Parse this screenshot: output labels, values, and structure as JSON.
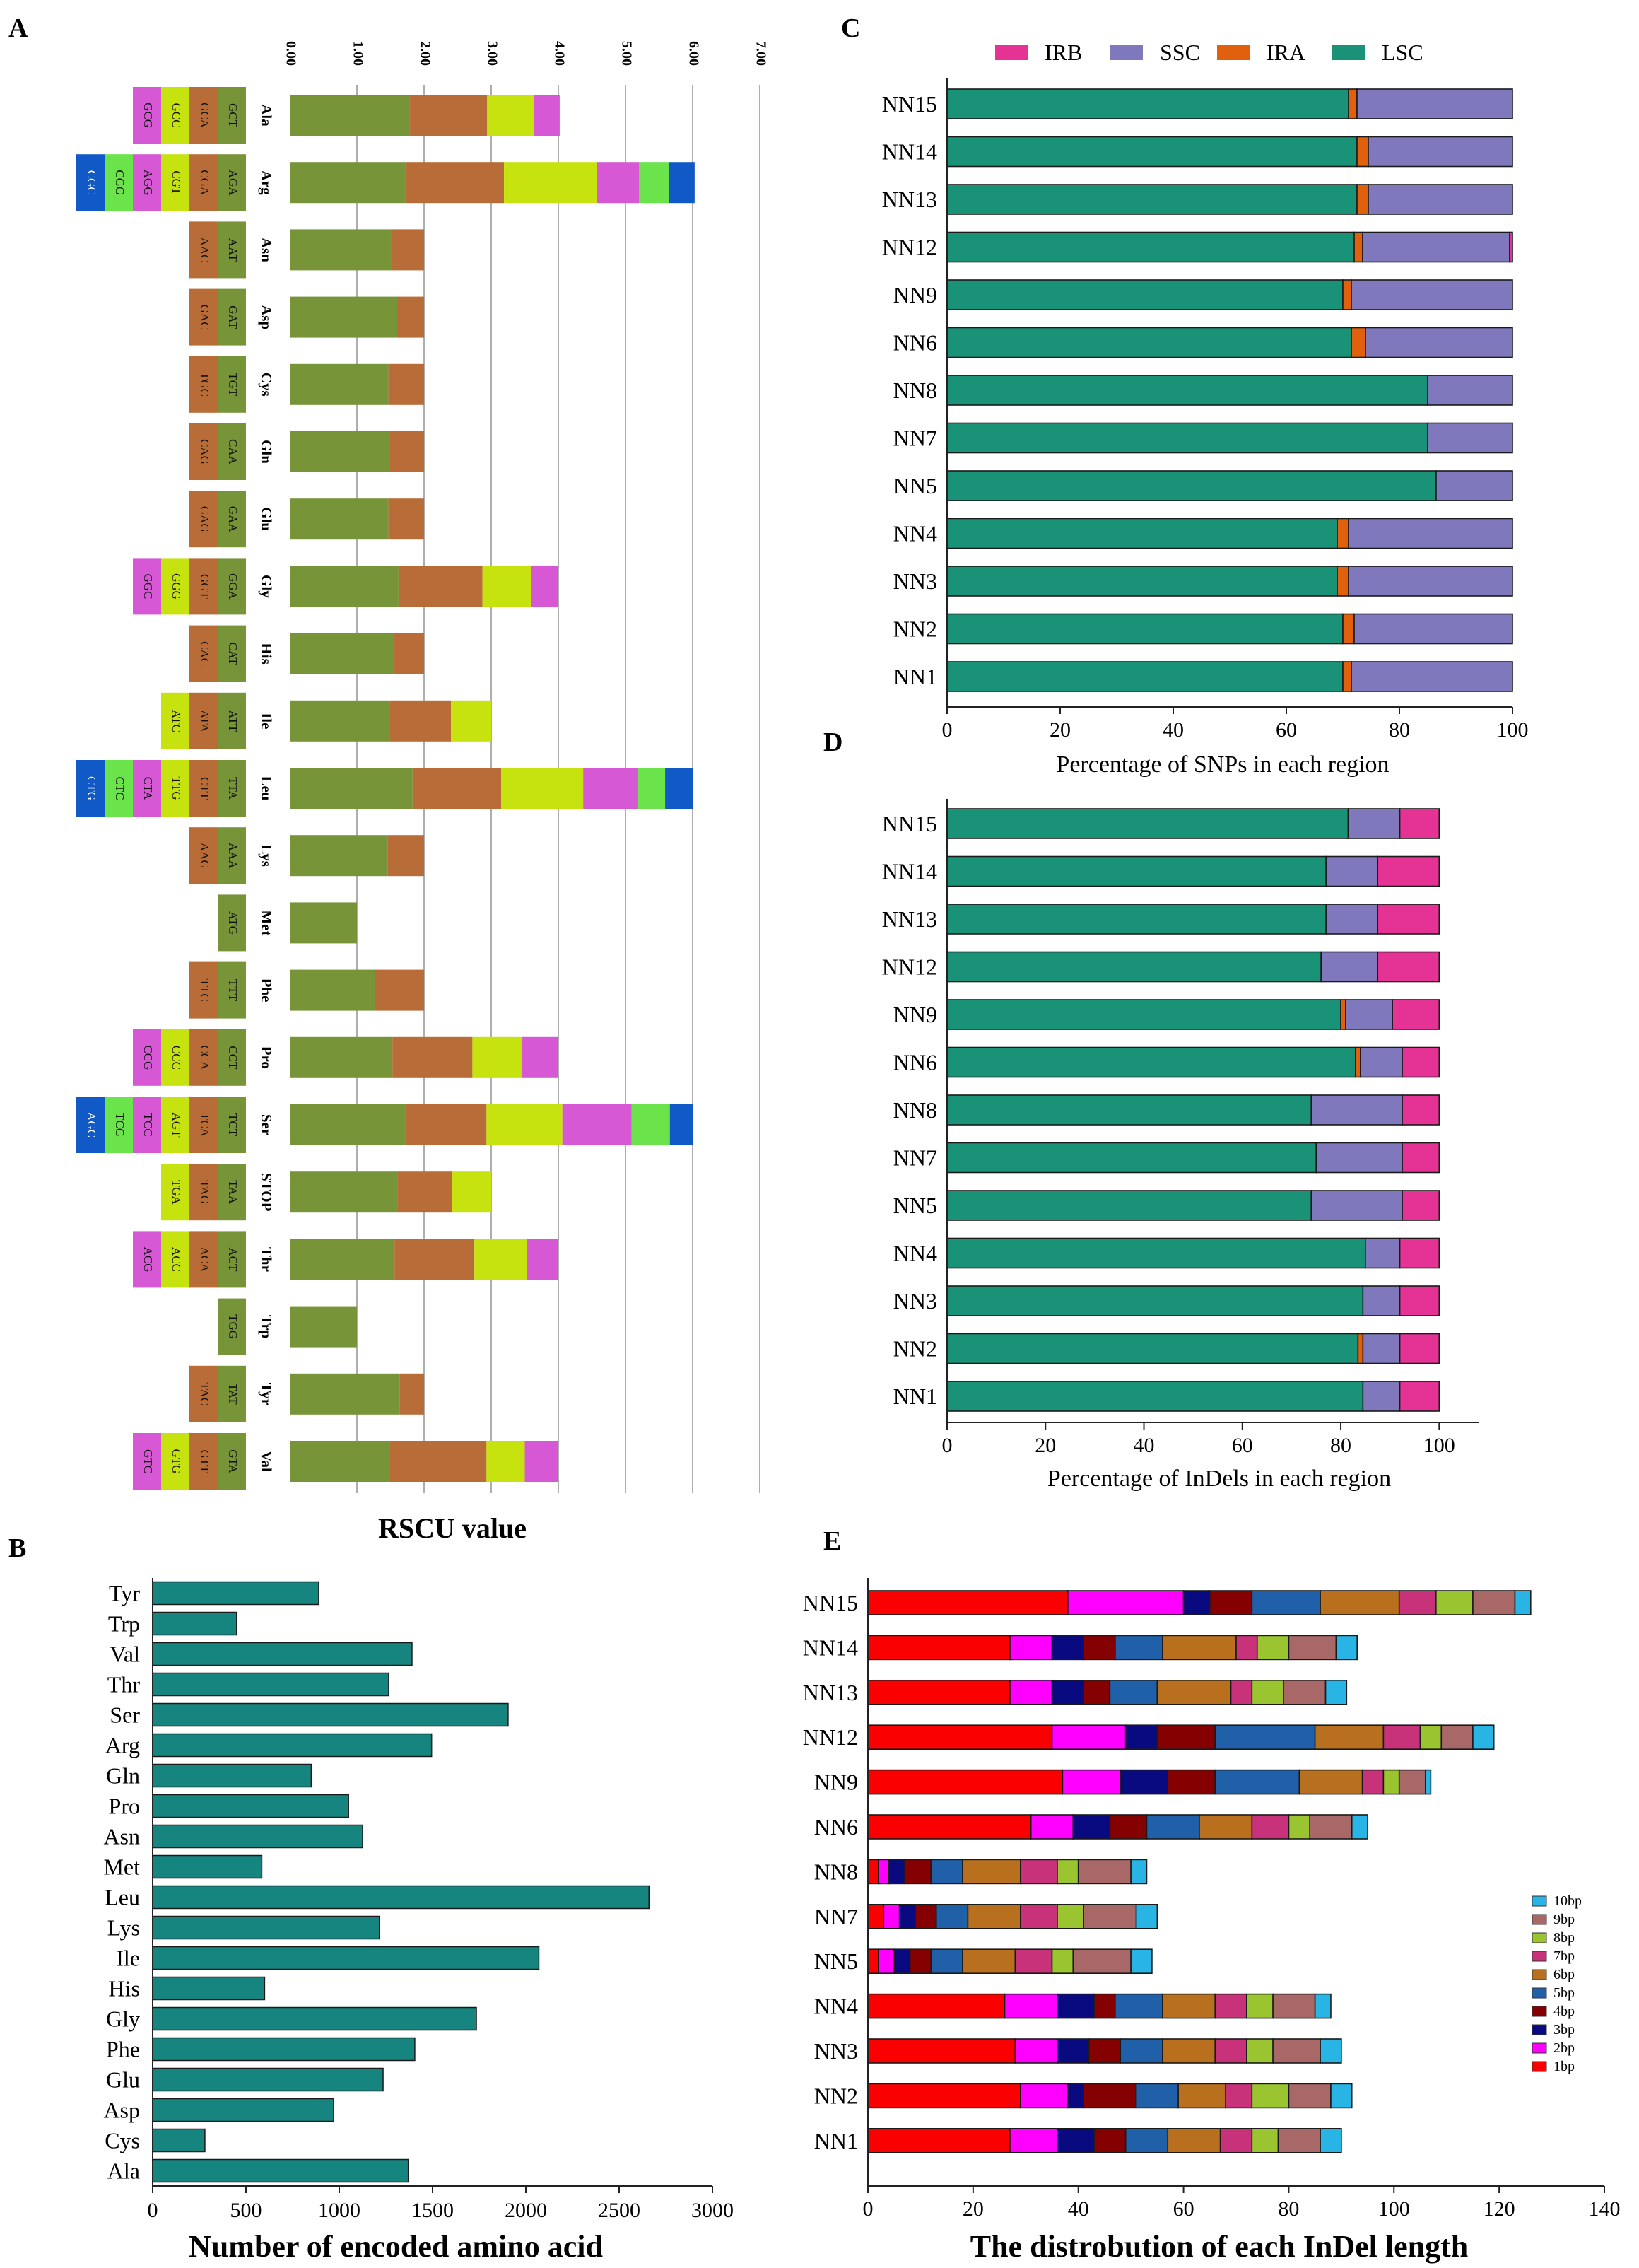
{
  "panels": {
    "A": "A",
    "B": "B",
    "C": "C",
    "D": "D",
    "E": "E"
  },
  "colors": {
    "teal": "#16857f",
    "olive": "#779438",
    "brown": "#b86c37",
    "lime": "#c6e30f",
    "magenta": "#d658d5",
    "green": "#6be34a",
    "blue": "#1259c8",
    "lsc": "#1a9278",
    "ira": "#e0600d",
    "ssc": "#7f78bc",
    "irb": "#e43394"
  },
  "chart_data": [
    {
      "panel": "A",
      "type": "bar",
      "subtype": "stacked-horizontal-rscu",
      "xlabel": "RSCU value",
      "ticks": [
        "0.00",
        "1.00",
        "2.00",
        "3.00",
        "4.00",
        "5.00",
        "6.00",
        "7.00"
      ],
      "xlim": [
        0,
        7
      ],
      "rows": [
        {
          "aa": "Ala",
          "codons": [
            "GCT",
            "GCA",
            "GCC",
            "GCG"
          ],
          "values": [
            1.79,
            1.15,
            0.7,
            0.38
          ]
        },
        {
          "aa": "Arg",
          "codons": [
            "AGA",
            "CGA",
            "CGT",
            "AGG",
            "CGG",
            "CGC"
          ],
          "values": [
            1.72,
            1.47,
            1.38,
            0.63,
            0.45,
            0.38
          ]
        },
        {
          "aa": "Asn",
          "codons": [
            "AAT",
            "AAC"
          ],
          "values": [
            1.51,
            0.49
          ]
        },
        {
          "aa": "Asp",
          "codons": [
            "GAT",
            "GAC"
          ],
          "values": [
            1.6,
            0.4
          ]
        },
        {
          "aa": "Cys",
          "codons": [
            "TGT",
            "TGC"
          ],
          "values": [
            1.47,
            0.53
          ]
        },
        {
          "aa": "Gln",
          "codons": [
            "CAA",
            "CAG"
          ],
          "values": [
            1.49,
            0.51
          ]
        },
        {
          "aa": "Glu",
          "codons": [
            "GAA",
            "GAG"
          ],
          "values": [
            1.47,
            0.53
          ]
        },
        {
          "aa": "Gly",
          "codons": [
            "GGA",
            "GGT",
            "GGG",
            "GGC"
          ],
          "values": [
            1.62,
            1.25,
            0.72,
            0.41
          ]
        },
        {
          "aa": "His",
          "codons": [
            "CAT",
            "CAC"
          ],
          "values": [
            1.55,
            0.45
          ]
        },
        {
          "aa": "Ile",
          "codons": [
            "ATT",
            "ATA",
            "ATC"
          ],
          "values": [
            1.49,
            0.91,
            0.6
          ]
        },
        {
          "aa": "Leu",
          "codons": [
            "TTA",
            "CTT",
            "TTG",
            "CTA",
            "CTC",
            "CTG"
          ],
          "values": [
            1.83,
            1.32,
            1.22,
            0.82,
            0.4,
            0.41
          ]
        },
        {
          "aa": "Lys",
          "codons": [
            "AAA",
            "AAG"
          ],
          "values": [
            1.46,
            0.54
          ]
        },
        {
          "aa": "Met",
          "codons": [
            "ATG"
          ],
          "values": [
            1.0
          ]
        },
        {
          "aa": "Phe",
          "codons": [
            "TTT",
            "TTC"
          ],
          "values": [
            1.27,
            0.73
          ]
        },
        {
          "aa": "Pro",
          "codons": [
            "CCT",
            "CCA",
            "CCC",
            "CCG"
          ],
          "values": [
            1.53,
            1.19,
            0.74,
            0.54
          ]
        },
        {
          "aa": "Ser",
          "codons": [
            "TCT",
            "TCA",
            "AGT",
            "TCC",
            "TCG",
            "AGC"
          ],
          "values": [
            1.72,
            1.21,
            1.13,
            1.03,
            0.57,
            0.34
          ]
        },
        {
          "aa": "STOP",
          "codons": [
            "TAA",
            "TAG",
            "TGA"
          ],
          "values": [
            1.61,
            0.81,
            0.58
          ]
        },
        {
          "aa": "Thr",
          "codons": [
            "ACT",
            "ACA",
            "ACC",
            "ACG"
          ],
          "values": [
            1.56,
            1.19,
            0.78,
            0.47
          ]
        },
        {
          "aa": "Trp",
          "codons": [
            "TGG"
          ],
          "values": [
            1.0
          ]
        },
        {
          "aa": "Tyr",
          "codons": [
            "TAT",
            "TAC"
          ],
          "values": [
            1.64,
            0.36
          ]
        },
        {
          "aa": "Val",
          "codons": [
            "GTA",
            "GTT",
            "GTG",
            "GTC"
          ],
          "values": [
            1.49,
            1.44,
            0.57,
            0.5
          ]
        }
      ]
    },
    {
      "panel": "B",
      "type": "bar",
      "subtype": "horizontal",
      "xlabel": "Number of encoded amino acid",
      "ticks": [
        "0",
        "500",
        "1000",
        "1500",
        "2000",
        "2500",
        "3000"
      ],
      "xlim": [
        0,
        3000
      ],
      "categories": [
        "Tyr",
        "Trp",
        "Val",
        "Thr",
        "Ser",
        "Arg",
        "Gln",
        "Pro",
        "Asn",
        "Met",
        "Leu",
        "Lys",
        "Ile",
        "His",
        "Gly",
        "Phe",
        "Glu",
        "Asp",
        "Cys",
        "Ala"
      ],
      "values": [
        890,
        450,
        1390,
        1265,
        1905,
        1495,
        850,
        1050,
        1125,
        585,
        2660,
        1215,
        2070,
        600,
        1735,
        1405,
        1235,
        970,
        280,
        1370
      ]
    },
    {
      "panel": "C",
      "type": "bar",
      "subtype": "stacked-horizontal-percent",
      "xlabel": "Percentage of SNPs in each region",
      "ticks": [
        "0",
        "20",
        "40",
        "60",
        "80",
        "100"
      ],
      "xlim": [
        0,
        100
      ],
      "legend": [
        "IRB",
        "SSC",
        "IRA",
        "LSC"
      ],
      "categories": [
        "NN15",
        "NN14",
        "NN13",
        "NN12",
        "NN9",
        "NN6",
        "NN8",
        "NN7",
        "NN5",
        "NN4",
        "NN3",
        "NN2",
        "NN1"
      ],
      "series": [
        {
          "name": "LSC",
          "values": [
            71.0,
            72.5,
            72.5,
            72.0,
            70.0,
            71.5,
            85.0,
            85.0,
            86.5,
            69.0,
            69.0,
            70.0,
            70.0
          ]
        },
        {
          "name": "IRA",
          "values": [
            1.5,
            2.0,
            2.0,
            1.5,
            1.5,
            2.5,
            0,
            0,
            0,
            2.0,
            2.0,
            2.0,
            1.5
          ]
        },
        {
          "name": "SSC",
          "values": [
            27.5,
            25.5,
            25.5,
            26.0,
            28.5,
            26.0,
            15.0,
            15.0,
            13.5,
            29.0,
            29.0,
            28.0,
            28.5
          ]
        },
        {
          "name": "IRB",
          "values": [
            0,
            0,
            0,
            0.5,
            0,
            0,
            0,
            0,
            0,
            0,
            0,
            0,
            0
          ]
        }
      ]
    },
    {
      "panel": "D",
      "type": "bar",
      "subtype": "stacked-horizontal-percent",
      "xlabel": "Percentage of InDels in each region",
      "ticks": [
        "0",
        "20",
        "40",
        "60",
        "80",
        "100"
      ],
      "xlim": [
        0,
        108
      ],
      "categories": [
        "NN15",
        "NN14",
        "NN13",
        "NN12",
        "NN9",
        "NN6",
        "NN8",
        "NN7",
        "NN5",
        "NN4",
        "NN3",
        "NN2",
        "NN1"
      ],
      "series": [
        {
          "name": "LSC",
          "values": [
            81.5,
            77.0,
            77.0,
            76.0,
            80.0,
            83.0,
            74.0,
            75.0,
            74.0,
            85.0,
            84.5,
            83.5,
            84.5
          ]
        },
        {
          "name": "IRA",
          "values": [
            0,
            0,
            0,
            0,
            1.0,
            1.0,
            0,
            0,
            0,
            0,
            0,
            1.0,
            0
          ]
        },
        {
          "name": "SSC",
          "values": [
            10.5,
            10.5,
            10.5,
            11.5,
            9.5,
            8.5,
            18.5,
            17.5,
            18.5,
            7.0,
            7.5,
            7.5,
            7.5
          ]
        },
        {
          "name": "IRB",
          "values": [
            8.0,
            12.5,
            12.5,
            12.5,
            9.5,
            7.5,
            7.5,
            7.5,
            7.5,
            8.0,
            8.0,
            8.0,
            8.0
          ]
        }
      ]
    },
    {
      "panel": "E",
      "type": "bar",
      "subtype": "stacked-horizontal",
      "xlabel": "The distrobution of each InDel length",
      "ticks": [
        "0",
        "20",
        "40",
        "60",
        "80",
        "100",
        "120",
        "140"
      ],
      "xlim": [
        0,
        140
      ],
      "legend": [
        "10bp",
        "9bp",
        "8bp",
        "7bp",
        "6bp",
        "5bp",
        "4bp",
        "3bp",
        "2bp",
        "1bp"
      ],
      "categories": [
        "NN15",
        "NN14",
        "NN13",
        "NN12",
        "NN9",
        "NN6",
        "NN8",
        "NN7",
        "NN5",
        "NN4",
        "NN3",
        "NN2",
        "NN1"
      ],
      "series": [
        {
          "name": "1bp",
          "values": [
            38,
            27,
            27,
            35,
            37,
            31,
            2,
            3,
            2,
            26,
            28,
            29,
            27
          ]
        },
        {
          "name": "2bp",
          "values": [
            22,
            8,
            8,
            14,
            11,
            8,
            2,
            3,
            3,
            10,
            8,
            9,
            9
          ]
        },
        {
          "name": "3bp",
          "values": [
            5,
            6,
            6,
            6,
            9,
            7,
            3,
            3,
            3,
            7,
            6,
            3,
            7
          ]
        },
        {
          "name": "4bp",
          "values": [
            8,
            6,
            5,
            11,
            9,
            7,
            5,
            4,
            4,
            4,
            6,
            10,
            6
          ]
        },
        {
          "name": "5bp",
          "values": [
            13,
            9,
            9,
            19,
            16,
            10,
            6,
            6,
            6,
            9,
            8,
            8,
            8
          ]
        },
        {
          "name": "6bp",
          "values": [
            15,
            14,
            14,
            13,
            12,
            10,
            11,
            10,
            10,
            10,
            10,
            9,
            10
          ]
        },
        {
          "name": "7bp",
          "values": [
            7,
            4,
            4,
            7,
            4,
            7,
            7,
            7,
            7,
            6,
            6,
            5,
            6
          ]
        },
        {
          "name": "8bp",
          "values": [
            7,
            6,
            6,
            4,
            3,
            4,
            4,
            5,
            4,
            5,
            5,
            7,
            5
          ]
        },
        {
          "name": "9bp",
          "values": [
            8,
            9,
            8,
            6,
            5,
            8,
            10,
            10,
            11,
            8,
            9,
            8,
            8
          ]
        },
        {
          "name": "10bp",
          "values": [
            3,
            4,
            4,
            4,
            1,
            3,
            3,
            4,
            4,
            3,
            4,
            4,
            4
          ]
        }
      ]
    }
  ]
}
